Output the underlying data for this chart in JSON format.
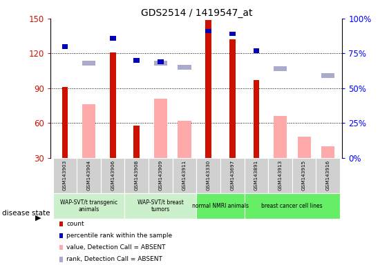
{
  "title": "GDS2514 / 1419547_at",
  "samples": [
    "GSM143903",
    "GSM143904",
    "GSM143906",
    "GSM143908",
    "GSM143909",
    "GSM143911",
    "GSM143330",
    "GSM143697",
    "GSM143891",
    "GSM143913",
    "GSM143915",
    "GSM143916"
  ],
  "count": [
    91,
    null,
    121,
    58,
    null,
    null,
    149,
    132,
    97,
    null,
    null,
    null
  ],
  "percentile_rank": [
    80,
    null,
    86,
    70,
    69,
    null,
    91,
    89,
    77,
    null,
    null,
    null
  ],
  "value_absent": [
    null,
    76,
    null,
    null,
    81,
    62,
    null,
    null,
    null,
    66,
    48,
    40
  ],
  "rank_absent": [
    null,
    68,
    null,
    null,
    68,
    65,
    null,
    null,
    null,
    64,
    null,
    59
  ],
  "ylim_left": [
    30,
    150
  ],
  "ylim_right": [
    0,
    100
  ],
  "yticks_left": [
    30,
    60,
    90,
    120,
    150
  ],
  "yticks_right": [
    0,
    25,
    50,
    75,
    100
  ],
  "yticklabels_right": [
    "0%",
    "25%",
    "50%",
    "75%",
    "100%"
  ],
  "groups_info": [
    {
      "label": "WAP-SVT/t transgenic\nanimals",
      "start": 0,
      "end": 2,
      "bg": "#ccf0cc"
    },
    {
      "label": "WAP-SVT/t breast\ntumors",
      "start": 3,
      "end": 5,
      "bg": "#ccf0cc"
    },
    {
      "label": "normal NMRI animals",
      "start": 6,
      "end": 7,
      "bg": "#66ee66"
    },
    {
      "label": "breast cancer cell lines",
      "start": 8,
      "end": 11,
      "bg": "#66ee66"
    }
  ],
  "count_color": "#cc1100",
  "percentile_color": "#0000bb",
  "value_absent_color": "#ffaaaa",
  "rank_absent_color": "#aaaacc",
  "gray_color": "#d0d0d0",
  "disease_state_label": "disease state",
  "legend_labels": [
    "count",
    "percentile rank within the sample",
    "value, Detection Call = ABSENT",
    "rank, Detection Call = ABSENT"
  ]
}
